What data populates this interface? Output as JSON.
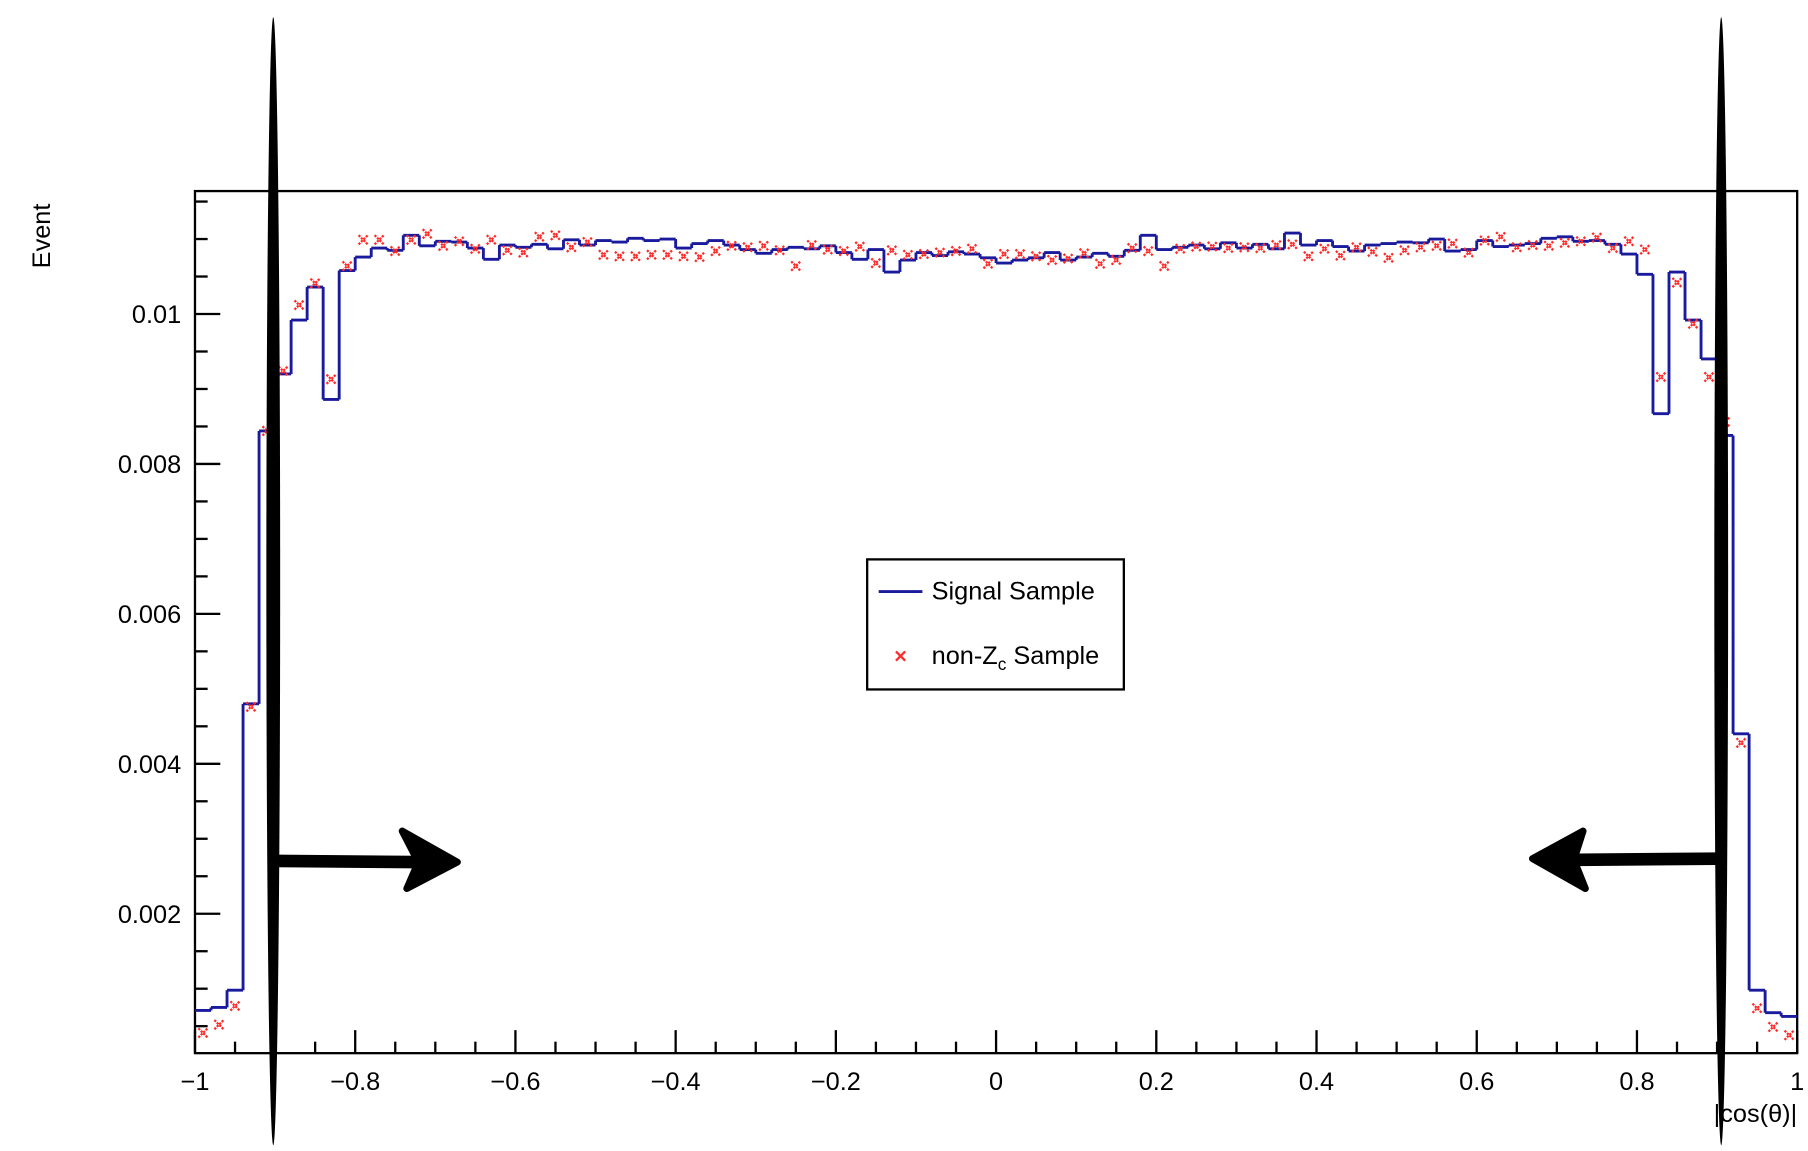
{
  "chart_data": {
    "type": "histogram",
    "x_label": "|cos(θ)|",
    "y_label": "Event",
    "xlim": [
      -1,
      1
    ],
    "ylim": [
      0.00014,
      0.01164
    ],
    "xticks": [
      {
        "value": -1,
        "label": "−1"
      },
      {
        "value": -0.8,
        "label": "−0.8"
      },
      {
        "value": -0.6,
        "label": "−0.6"
      },
      {
        "value": -0.4,
        "label": "−0.4"
      },
      {
        "value": -0.2,
        "label": "−0.2"
      },
      0,
      0.2,
      0.4,
      0.6,
      0.8,
      1
    ],
    "yticks": [
      0.002,
      0.004,
      0.006,
      0.008,
      0.01
    ],
    "bins": [
      -1,
      -0.98,
      -0.96,
      -0.94,
      -0.92,
      -0.9,
      -0.88,
      -0.86,
      -0.84,
      -0.82,
      -0.8,
      -0.78,
      -0.76,
      -0.74,
      -0.72,
      -0.7,
      -0.68,
      -0.66,
      -0.64,
      -0.62,
      -0.6,
      -0.58,
      -0.56,
      -0.54,
      -0.52,
      -0.5,
      -0.48,
      -0.46,
      -0.44,
      -0.42,
      -0.4,
      -0.38,
      -0.36,
      -0.34,
      -0.32,
      -0.3,
      -0.28,
      -0.26,
      -0.24,
      -0.22,
      -0.2,
      -0.18,
      -0.16,
      -0.14,
      -0.12,
      -0.1,
      -0.08,
      -0.06,
      -0.04,
      -0.02,
      0,
      0.02,
      0.04,
      0.06,
      0.08,
      0.1,
      0.12,
      0.14,
      0.16,
      0.18,
      0.2,
      0.22,
      0.24,
      0.26,
      0.28,
      0.3,
      0.32,
      0.34,
      0.36,
      0.38,
      0.4,
      0.42,
      0.44,
      0.46,
      0.48,
      0.5,
      0.52,
      0.54,
      0.56,
      0.58,
      0.6,
      0.62,
      0.64,
      0.66,
      0.68,
      0.7,
      0.72,
      0.74,
      0.76,
      0.78,
      0.8,
      0.82,
      0.84,
      0.86,
      0.88,
      0.9,
      0.92,
      0.94,
      0.96,
      0.98,
      1
    ],
    "series": [
      {
        "name": "Signal Sample",
        "style": "step",
        "color": "#1a1a9c",
        "values": [
          0.00071,
          0.00075,
          0.00098,
          0.0048,
          0.00844,
          0.0092,
          0.00992,
          0.01036,
          0.00886,
          0.01058,
          0.01076,
          0.01088,
          0.01085,
          0.01105,
          0.01091,
          0.01097,
          0.01096,
          0.01088,
          0.01073,
          0.01092,
          0.01089,
          0.01093,
          0.01087,
          0.01099,
          0.01092,
          0.01098,
          0.01096,
          0.01101,
          0.01098,
          0.011,
          0.01088,
          0.01094,
          0.01098,
          0.01092,
          0.01086,
          0.01081,
          0.01086,
          0.01089,
          0.01087,
          0.01091,
          0.01082,
          0.01073,
          0.01086,
          0.01056,
          0.01072,
          0.01082,
          0.01078,
          0.01083,
          0.0108,
          0.01075,
          0.01068,
          0.01072,
          0.01075,
          0.01082,
          0.01072,
          0.01076,
          0.01081,
          0.01077,
          0.01085,
          0.01105,
          0.01086,
          0.01089,
          0.01092,
          0.01087,
          0.01095,
          0.01088,
          0.01093,
          0.01087,
          0.01108,
          0.01092,
          0.01098,
          0.0109,
          0.01084,
          0.01092,
          0.01094,
          0.01096,
          0.01095,
          0.011,
          0.01084,
          0.01086,
          0.01098,
          0.0109,
          0.01092,
          0.01094,
          0.01101,
          0.01103,
          0.01097,
          0.01098,
          0.01093,
          0.0108,
          0.01053,
          0.00867,
          0.01056,
          0.00992,
          0.0094,
          0.00838,
          0.0044,
          0.00098,
          0.00068,
          0.00063
        ]
      },
      {
        "name": "non-Z_c Sample",
        "style": "marker",
        "color": "#ff2a2a",
        "values": [
          0.00041,
          0.00052,
          0.00077,
          0.00476,
          0.00844,
          0.00924,
          0.01012,
          0.01041,
          0.00913,
          0.01064,
          0.01099,
          0.01099,
          0.01084,
          0.01099,
          0.01107,
          0.01091,
          0.01097,
          0.01087,
          0.01099,
          0.01085,
          0.01082,
          0.01103,
          0.01105,
          0.01089,
          0.01096,
          0.01079,
          0.01077,
          0.01077,
          0.01079,
          0.01079,
          0.01077,
          0.01076,
          0.01084,
          0.01091,
          0.01089,
          0.01091,
          0.01085,
          0.01064,
          0.01092,
          0.01086,
          0.01084,
          0.0109,
          0.01068,
          0.01085,
          0.01079,
          0.0108,
          0.01082,
          0.01084,
          0.01087,
          0.01067,
          0.0108,
          0.0108,
          0.01077,
          0.01072,
          0.01074,
          0.01081,
          0.01067,
          0.01072,
          0.01088,
          0.01084,
          0.01064,
          0.01087,
          0.0109,
          0.0109,
          0.01088,
          0.01089,
          0.01088,
          0.01092,
          0.01093,
          0.01077,
          0.01087,
          0.01078,
          0.01089,
          0.01083,
          0.01075,
          0.01085,
          0.01089,
          0.01091,
          0.01094,
          0.01082,
          0.01098,
          0.01103,
          0.01089,
          0.01092,
          0.01091,
          0.01095,
          0.01097,
          0.01102,
          0.01088,
          0.01097,
          0.01086,
          0.00916,
          0.01042,
          0.00987,
          0.00916,
          0.00856,
          0.00428,
          0.00074,
          0.00049,
          0.00038
        ]
      }
    ]
  }
}
